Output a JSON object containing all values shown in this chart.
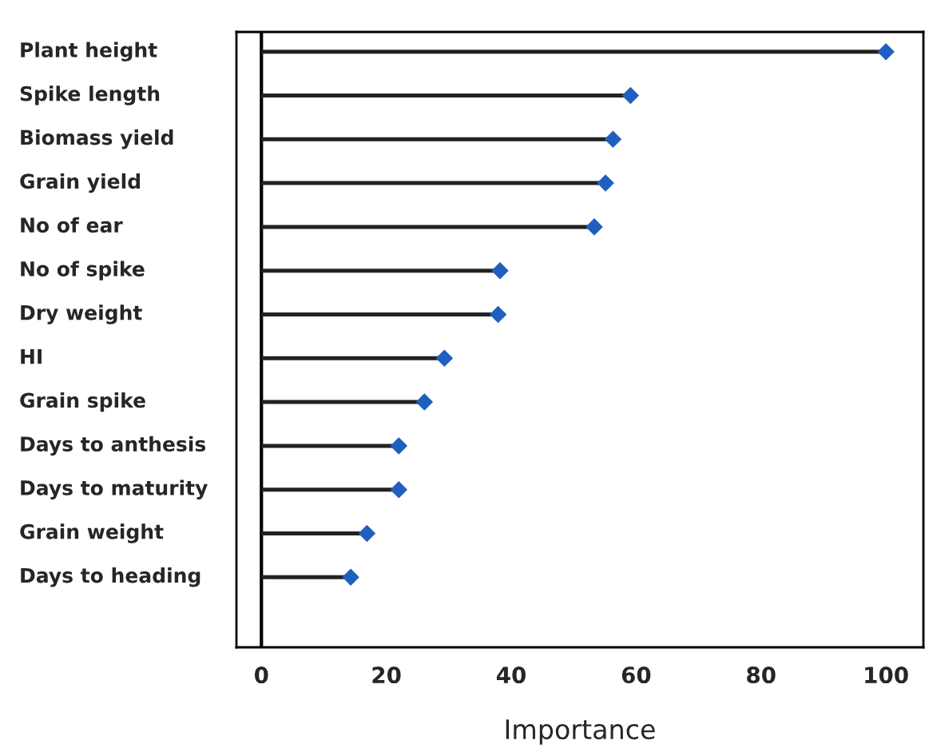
{
  "chart_data": {
    "type": "lollipop",
    "orientation": "horizontal",
    "xlabel": "Importance",
    "categories": [
      "Plant height",
      "Spike length",
      "Biomass yield",
      "Grain yield",
      "No of ear",
      "No of spike",
      "Dry weight",
      "HI",
      "Grain spike",
      "Days to anthesis",
      "Days to maturity",
      "Grain weight",
      "Days to heading"
    ],
    "values": [
      100,
      59.1,
      56.3,
      55.1,
      53.3,
      38.2,
      37.9,
      29.3,
      26.1,
      22.0,
      22.0,
      16.9,
      14.3
    ],
    "color": "#1f5fbf",
    "marker": "diamond",
    "xlim": [
      -4,
      106
    ],
    "xticks": [
      0,
      20,
      40,
      60,
      80,
      100
    ],
    "ref_lines": [
      {
        "axis": "x",
        "value": 0,
        "color": "#000000"
      }
    ],
    "grid": false,
    "legend": false
  }
}
